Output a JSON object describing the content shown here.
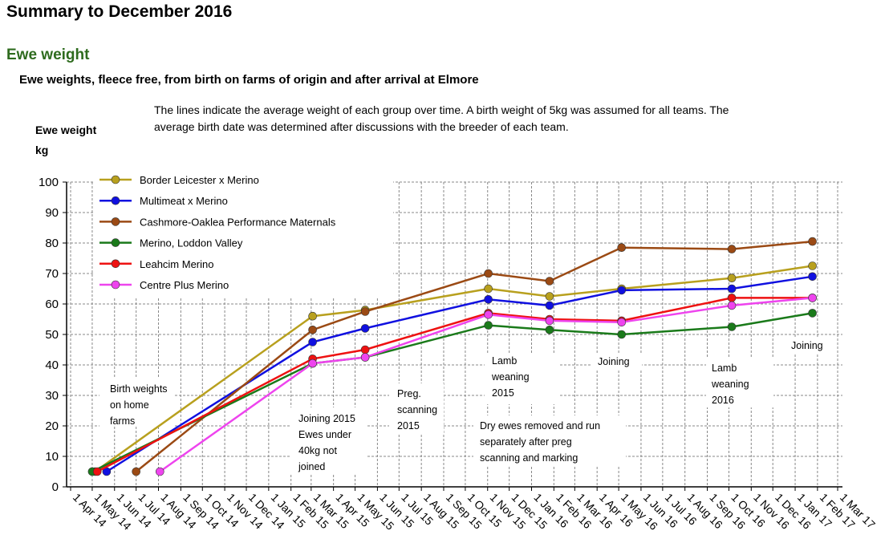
{
  "page": {
    "title": "Summary to December 2016",
    "section": "Ewe weight",
    "subtitle": "Ewe weights, fleece free, from birth on farms of origin and after arrival at Elmore",
    "note_line1": "The lines indicate the average weight of each group over time.  A birth weight of 5kg was assumed for all teams.  The",
    "note_line2": "average birth date was determined after discussions with the breeder of each team.",
    "ylabel_line1": "Ewe weight",
    "ylabel_line2": "kg"
  },
  "chart_data": {
    "type": "line",
    "ylim": [
      0,
      100
    ],
    "yticks": [
      0,
      10,
      20,
      30,
      40,
      50,
      60,
      70,
      80,
      90,
      100
    ],
    "xticks": [
      "1 Apr 14",
      "1 May 14",
      "1 Jun 14",
      "1 Jul 14",
      "1 Aug 14",
      "1 Sep 14",
      "1 Oct 14",
      "1 Nov 14",
      "1 Dec 14",
      "1 Jan 15",
      "1 Feb 15",
      "1 Mar 15",
      "1 Apr 15",
      "1 May 15",
      "1 Jun 15",
      "1 Jul 15",
      "1 Aug 15",
      "1 Sep 15",
      "1 Oct 15",
      "1 Nov 15",
      "1 Dec 15",
      "1 Jan 16",
      "1 Feb 16",
      "1 Mar 16",
      "1 Apr 16",
      "1 May 16",
      "1 Jun 16",
      "1 Jul 16",
      "1 Aug 16",
      "1 Sep 16",
      "1 Oct 16",
      "1 Nov 16",
      "1 Dec 16",
      "1 Jan 17",
      "1 Feb 17",
      "1 Mar 17"
    ],
    "legend_position": "top-left",
    "grid": true,
    "series": [
      {
        "name": "Border Leicester x Merino",
        "color": "#b8a01e",
        "points": [
          [
            "2014-05-05",
            5
          ],
          [
            "2015-03-03",
            56
          ],
          [
            "2015-05-15",
            58
          ],
          [
            "2015-11-02",
            65
          ],
          [
            "2016-01-26",
            62.5
          ],
          [
            "2016-05-05",
            65
          ],
          [
            "2016-10-05",
            68.5
          ],
          [
            "2017-01-25",
            72.5
          ]
        ]
      },
      {
        "name": "Multimeat x Merino",
        "color": "#1010e0",
        "points": [
          [
            "2014-05-21",
            5
          ],
          [
            "2015-03-03",
            47.5
          ],
          [
            "2015-05-15",
            52
          ],
          [
            "2015-11-02",
            61.5
          ],
          [
            "2016-01-26",
            59.5
          ],
          [
            "2016-05-05",
            64.5
          ],
          [
            "2016-10-05",
            65
          ],
          [
            "2017-01-25",
            69
          ]
        ]
      },
      {
        "name": "Cashmore-Oaklea Performance Maternals",
        "color": "#9b4a14",
        "points": [
          [
            "2014-07-01",
            5
          ],
          [
            "2015-03-03",
            51.5
          ],
          [
            "2015-05-15",
            57.5
          ],
          [
            "2015-11-02",
            70
          ],
          [
            "2016-01-26",
            67.5
          ],
          [
            "2016-05-05",
            78.5
          ],
          [
            "2016-10-05",
            78
          ],
          [
            "2017-01-25",
            80.5
          ]
        ]
      },
      {
        "name": "Merino, Loddon Valley",
        "color": "#1a7a1a",
        "points": [
          [
            "2014-05-01",
            5
          ],
          [
            "2015-03-03",
            40.5
          ],
          [
            "2015-05-15",
            42.5
          ],
          [
            "2015-11-02",
            53
          ],
          [
            "2016-01-26",
            51.5
          ],
          [
            "2016-05-05",
            50
          ],
          [
            "2016-10-05",
            52.5
          ],
          [
            "2017-01-25",
            57
          ]
        ]
      },
      {
        "name": "Leahcim Merino",
        "color": "#ee1111",
        "points": [
          [
            "2014-05-08",
            5
          ],
          [
            "2015-03-03",
            42
          ],
          [
            "2015-05-15",
            45
          ],
          [
            "2015-11-02",
            57
          ],
          [
            "2016-01-26",
            55
          ],
          [
            "2016-05-05",
            54.5
          ],
          [
            "2016-10-05",
            62
          ],
          [
            "2017-01-25",
            62
          ]
        ]
      },
      {
        "name": "Centre Plus Merino",
        "color": "#ee44ee",
        "points": [
          [
            "2014-08-03",
            5
          ],
          [
            "2015-03-03",
            40.5
          ],
          [
            "2015-05-15",
            42.5
          ],
          [
            "2015-11-02",
            56.5
          ],
          [
            "2016-01-26",
            54.5
          ],
          [
            "2016-05-05",
            54
          ],
          [
            "2016-10-05",
            59.5
          ],
          [
            "2017-01-25",
            62
          ]
        ]
      }
    ],
    "annotations": [
      {
        "lines": [
          "Birth weights",
          "on home",
          "farms"
        ]
      },
      {
        "lines": [
          "Joining 2015",
          "Ewes under",
          "40kg not",
          "joined"
        ]
      },
      {
        "lines": [
          "Preg.",
          "scanning",
          "2015"
        ]
      },
      {
        "lines": [
          "Lamb",
          "weaning",
          "2015"
        ]
      },
      {
        "lines": [
          "Joining"
        ]
      },
      {
        "lines": [
          "Lamb",
          "weaning",
          "2016"
        ]
      },
      {
        "lines": [
          "Joining"
        ]
      },
      {
        "lines": [
          "Dry ewes removed and run",
          "separately after  preg",
          "scanning and marking"
        ]
      }
    ]
  }
}
